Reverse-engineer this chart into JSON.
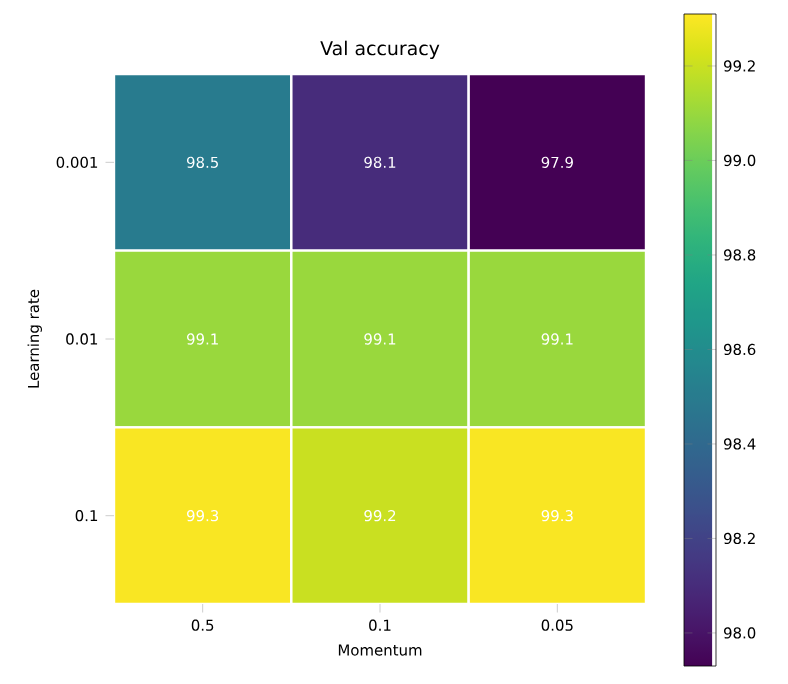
{
  "chart_data": {
    "type": "heatmap",
    "title": "Val accuracy",
    "xlabel": "Momentum",
    "ylabel": "Learning rate",
    "categories": [
      "0.5",
      "0.1",
      "0.05"
    ],
    "y_categories": [
      "0.001",
      "0.01",
      "0.1"
    ],
    "cells": [
      [
        98.5,
        98.1,
        97.9
      ],
      [
        99.1,
        99.1,
        99.1
      ],
      [
        99.3,
        99.2,
        99.3
      ]
    ],
    "data_labels": true,
    "clim": [
      97.93,
      99.31
    ],
    "cticks": [
      {
        "value": 98.0,
        "label": "98.0"
      },
      98.2,
      98.4,
      98.6,
      98.8,
      {
        "value": 99.0,
        "label": "99.0"
      },
      99.2
    ]
  }
}
